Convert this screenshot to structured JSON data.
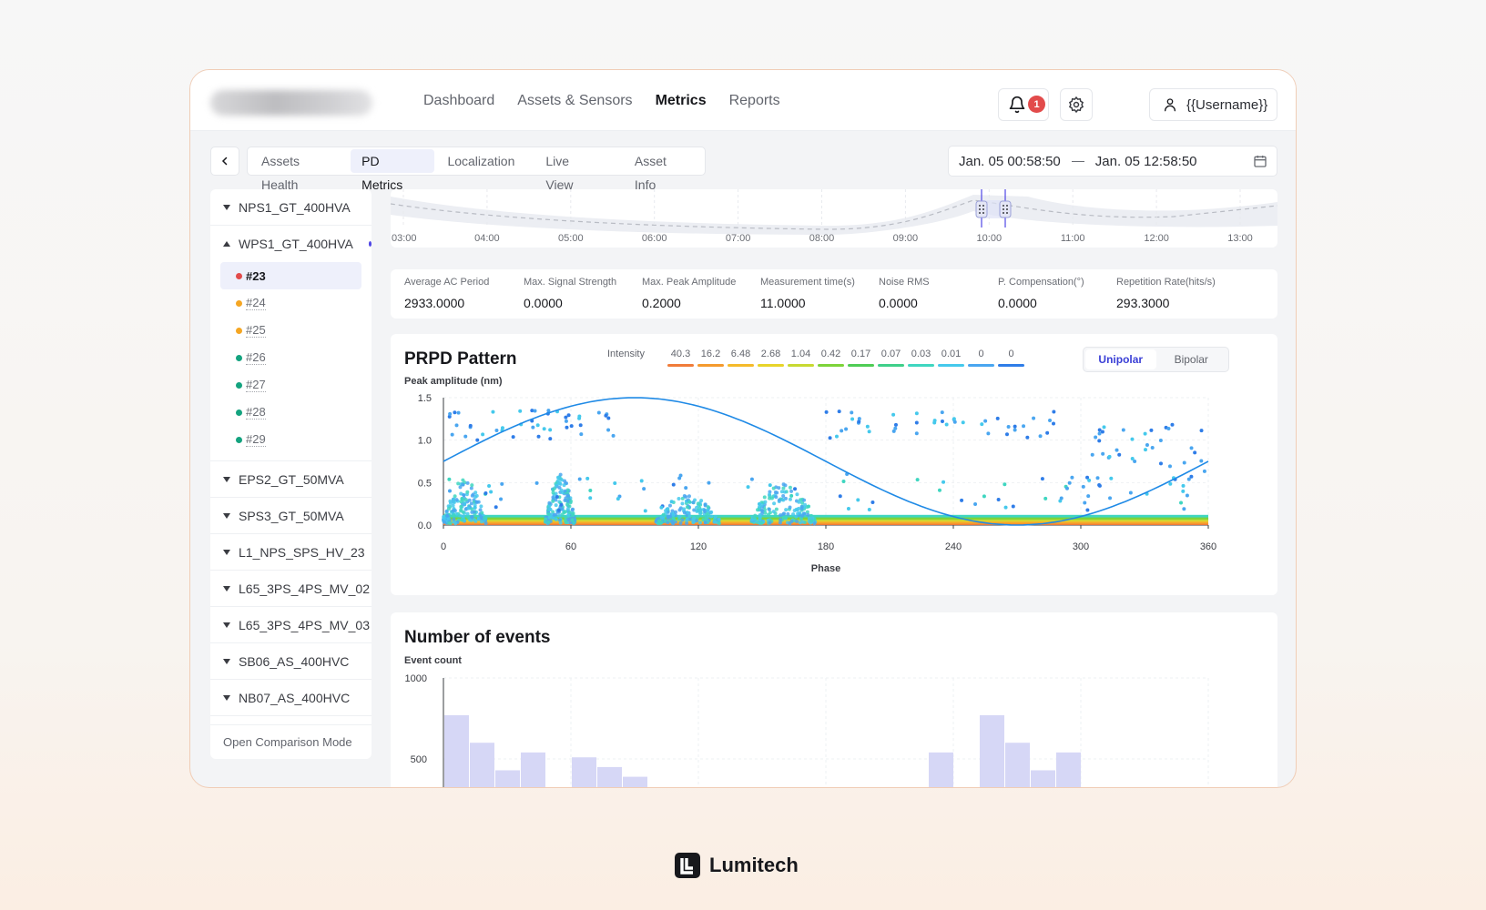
{
  "nav": {
    "items": [
      {
        "label": "Dashboard",
        "active": false
      },
      {
        "label": "Assets & Sensors",
        "active": false
      },
      {
        "label": "Metrics",
        "active": true
      },
      {
        "label": "Reports",
        "active": false
      }
    ]
  },
  "header": {
    "notification_count": "1",
    "username": "{{Username}}"
  },
  "tabs": [
    {
      "label": "Assets Health",
      "active": false
    },
    {
      "label": "PD Metrics",
      "active": true
    },
    {
      "label": "Localization",
      "active": false
    },
    {
      "label": "Live View",
      "active": false
    },
    {
      "label": "Asset Info",
      "active": false
    }
  ],
  "date_range": {
    "start": "Jan. 05 00:58:50",
    "end": "Jan. 05 12:58:50"
  },
  "sidebar": {
    "groups": [
      {
        "label": "NPS1_GT_400HVA",
        "expanded": false
      },
      {
        "label": "WPS1_GT_400HVA",
        "expanded": true,
        "indicator_color": "#4f46e5"
      },
      {
        "label": "EPS2_GT_50MVA",
        "expanded": false
      },
      {
        "label": "SPS3_GT_50MVA",
        "expanded": false
      },
      {
        "label": "L1_NPS_SPS_HV_23",
        "expanded": false
      },
      {
        "label": "L65_3PS_4PS_MV_02",
        "expanded": false
      },
      {
        "label": "L65_3PS_4PS_MV_03",
        "expanded": false
      },
      {
        "label": "SB06_AS_400HVC",
        "expanded": false
      },
      {
        "label": "NB07_AS_400HVC",
        "expanded": false
      }
    ],
    "sensors": [
      {
        "label": "#23",
        "color": "#e24b4b",
        "active": true
      },
      {
        "label": "#24",
        "color": "#f5a623",
        "active": false
      },
      {
        "label": "#25",
        "color": "#f5a623",
        "active": false
      },
      {
        "label": "#26",
        "color": "#14a37f",
        "active": false
      },
      {
        "label": "#27",
        "color": "#14a37f",
        "active": false
      },
      {
        "label": "#28",
        "color": "#14a37f",
        "active": false
      },
      {
        "label": "#29",
        "color": "#14a37f",
        "active": false
      }
    ],
    "footer_label": "Open Comparison Mode"
  },
  "timeline": {
    "ticks": [
      "03:00",
      "04:00",
      "05:00",
      "06:00",
      "07:00",
      "08:00",
      "09:00",
      "10:00",
      "11:00",
      "12:00",
      "13:00"
    ]
  },
  "metrics": [
    {
      "label": "Average AC Period",
      "value": "2933.0000"
    },
    {
      "label": "Max. Signal Strength",
      "value": "0.0000"
    },
    {
      "label": "Max. Peak Amplitude",
      "value": "0.2000"
    },
    {
      "label": "Measurement time(s)",
      "value": "11.0000"
    },
    {
      "label": "Noise RMS",
      "value": "0.0000"
    },
    {
      "label": "P. Compensation(°)",
      "value": "0.0000"
    },
    {
      "label": "Repetition Rate(hits/s)",
      "value": "293.3000"
    }
  ],
  "prpd": {
    "title": "PRPD Pattern",
    "ylabel": "Peak amplitude (nm)",
    "xlabel": "Phase",
    "intensity_label": "Intensity",
    "intensity_scale": [
      {
        "value": "40.3",
        "color": "#f07c3a"
      },
      {
        "value": "16.2",
        "color": "#f49a2e"
      },
      {
        "value": "6.48",
        "color": "#f5bb2b"
      },
      {
        "value": "2.68",
        "color": "#e8d42a"
      },
      {
        "value": "1.04",
        "color": "#c8d932"
      },
      {
        "value": "0.42",
        "color": "#7dd33a"
      },
      {
        "value": "0.17",
        "color": "#4fcc55"
      },
      {
        "value": "0.07",
        "color": "#3fcf8a"
      },
      {
        "value": "0.03",
        "color": "#3fd6c0"
      },
      {
        "value": "0.01",
        "color": "#45c9ec"
      },
      {
        "value": "0",
        "color": "#4aa6f0"
      },
      {
        "value": "0",
        "color": "#2f7de8"
      }
    ],
    "toggle": [
      {
        "label": "Unipolar",
        "active": true
      },
      {
        "label": "Bipolar",
        "active": false
      }
    ]
  },
  "events": {
    "title": "Number of events",
    "ylabel": "Event count"
  },
  "chart_data": [
    {
      "type": "scatter",
      "title": "PRPD Pattern",
      "xlabel": "Phase",
      "ylabel": "Peak amplitude (nm)",
      "xlim": [
        0,
        360
      ],
      "ylim": [
        0,
        1.5
      ],
      "xticks": [
        0,
        60,
        120,
        180,
        240,
        300,
        360
      ],
      "yticks": [
        "0.0",
        "0.5",
        "1.0",
        "1.5"
      ],
      "sine_amplitude": [
        0,
        1.5
      ],
      "clusters": [
        {
          "phase": [
            0,
            20
          ],
          "amp": [
            0.02,
            0.55
          ]
        },
        {
          "phase": [
            48,
            62
          ],
          "amp": [
            0.02,
            0.6
          ]
        },
        {
          "phase": [
            100,
            130
          ],
          "amp": [
            0.02,
            0.35
          ]
        },
        {
          "phase": [
            145,
            175
          ],
          "amp": [
            0.02,
            0.5
          ]
        }
      ],
      "sparse_high": [
        {
          "phase": [
            2,
            80
          ],
          "amp": [
            1.0,
            1.35
          ]
        },
        {
          "phase": [
            180,
            290
          ],
          "amp": [
            1.0,
            1.35
          ]
        },
        {
          "phase": [
            300,
            360
          ],
          "amp": [
            0.3,
            1.2
          ]
        }
      ],
      "grid": true
    },
    {
      "type": "bar",
      "title": "Number of events",
      "ylabel": "Event count",
      "yticks": [
        "500",
        "1000"
      ],
      "ylim": [
        0,
        1000
      ],
      "values": [
        770,
        600,
        430,
        540,
        0,
        510,
        450,
        390,
        0,
        0,
        0,
        0,
        0,
        0,
        0,
        0,
        0,
        0,
        0,
        540,
        0,
        770,
        600,
        430,
        540
      ]
    }
  ]
}
